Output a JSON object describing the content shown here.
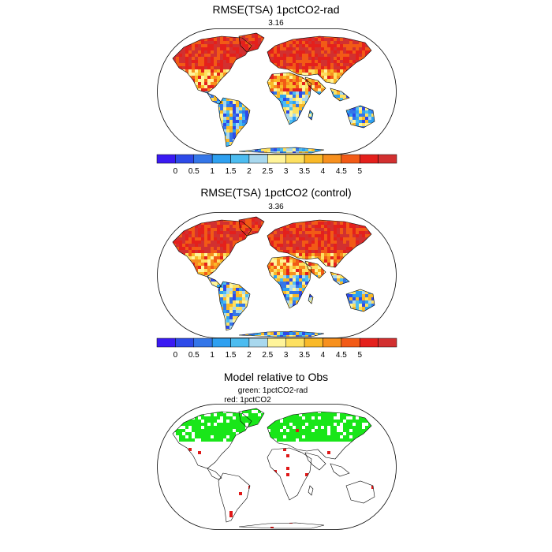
{
  "panels": [
    {
      "title": "RMSE(TSA) 1pctCO2-rad",
      "value": "3.16",
      "id": "rad"
    },
    {
      "title": "RMSE(TSA) 1pctCO2 (control)",
      "value": "3.36",
      "id": "control"
    }
  ],
  "colorbar": {
    "ticks": [
      "0",
      "0.5",
      "1",
      "1.5",
      "2",
      "2.5",
      "3",
      "3.5",
      "4",
      "4.5",
      "5"
    ],
    "colors": [
      "#3a1af2",
      "#2d4ae8",
      "#3476e8",
      "#2ea0f0",
      "#4cbcf0",
      "#a8d8ee",
      "#fff49a",
      "#fde060",
      "#f9b928",
      "#f7901e",
      "#f25a16",
      "#e4201c",
      "#d23030"
    ]
  },
  "comparison": {
    "title": "Model relative to Obs",
    "legend_green": "green: 1pctCO2-rad",
    "legend_red": "red: 1pctCO2",
    "colors": {
      "green": "#19e619",
      "red": "#e01818"
    }
  }
}
